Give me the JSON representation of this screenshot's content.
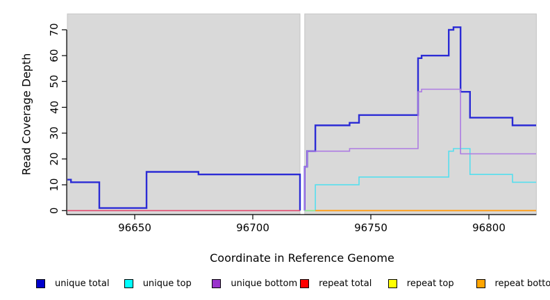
{
  "chart_data": {
    "type": "line",
    "subtype": "step-coverage-plot",
    "title": "",
    "xlabel": "Coordinate in Reference Genome",
    "ylabel": "Read Coverage Depth",
    "xlim": [
      96621.5,
      96820
    ],
    "ylim": [
      0,
      70
    ],
    "x_ticks": [
      96650,
      96700,
      96750,
      96800
    ],
    "y_ticks": [
      0,
      10,
      20,
      30,
      40,
      50,
      60,
      70
    ],
    "plot_bg_color": "#d9d9d9",
    "plot_border_color": "#c4c4c4",
    "axis_color": "#000000",
    "gap_region": [
      96720,
      96722
    ],
    "legend_position": "bottom",
    "grid": false,
    "series": [
      {
        "name": "unique total",
        "color": "#2b2bd5",
        "legend_color": "#0000cc",
        "width": 2.4,
        "segments": [
          {
            "steps": [
              [
                96621.5,
                12
              ],
              [
                96623,
                11
              ],
              [
                96635,
                1
              ],
              [
                96655,
                15
              ],
              [
                96677,
                14
              ],
              [
                96720,
                0
              ]
            ],
            "end": 96720
          },
          {
            "steps": [
              [
                96722,
                0
              ],
              [
                96722,
                17
              ],
              [
                96723,
                23
              ],
              [
                96726.5,
                33
              ],
              [
                96741,
                34
              ],
              [
                96745,
                37
              ],
              [
                96770,
                59
              ],
              [
                96771.5,
                60
              ],
              [
                96783,
                70
              ],
              [
                96785,
                71
              ],
              [
                96788,
                46
              ],
              [
                96792,
                36
              ],
              [
                96810,
                33
              ]
            ],
            "end": 96820
          }
        ]
      },
      {
        "name": "unique top",
        "color": "#55dfee",
        "legend_color": "#00ffff",
        "width": 1.6,
        "segments": [
          {
            "steps": [
              [
                96722,
                0
              ],
              [
                96726.5,
                10
              ],
              [
                96745,
                13
              ],
              [
                96783,
                23
              ],
              [
                96785,
                24
              ],
              [
                96792,
                14
              ],
              [
                96810,
                11
              ]
            ],
            "end": 96820
          }
        ]
      },
      {
        "name": "unique bottom",
        "color": "#ad7be3",
        "legend_color": "#9933cc",
        "width": 1.6,
        "segments": [
          {
            "steps": [
              [
                96722,
                0
              ],
              [
                96722,
                17
              ],
              [
                96723,
                23
              ],
              [
                96741,
                24
              ],
              [
                96770,
                46
              ],
              [
                96771.5,
                47
              ],
              [
                96788,
                22
              ]
            ],
            "end": 96820
          }
        ]
      },
      {
        "name": "repeat total",
        "color": "#e34a6f",
        "legend_color": "#ff0000",
        "width": 1.6,
        "segments": [
          {
            "steps": [
              [
                96621.5,
                0
              ]
            ],
            "end": 96720
          }
        ]
      },
      {
        "name": "repeat top",
        "color": "#8ce98c",
        "legend_color": "#ffff00",
        "width": 1.6,
        "segments": [
          {
            "steps": [
              [
                96722,
                0
              ]
            ],
            "end": 96726.5
          }
        ]
      },
      {
        "name": "repeat bottom",
        "color": "#ffa01e",
        "legend_color": "#ffa500",
        "width": 2.0,
        "segments": [
          {
            "steps": [
              [
                96726.5,
                0
              ]
            ],
            "end": 96820
          }
        ]
      }
    ]
  }
}
